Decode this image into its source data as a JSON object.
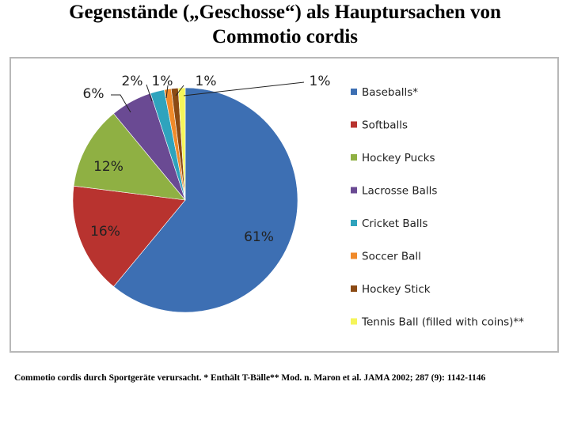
{
  "title_line1": "Gegenstände („Geschosse“) als Hauptursachen von",
  "title_line2": "Commotio cordis",
  "footnote": "Commotio cordis durch Sportgeräte verursacht. * Enthält T-Bälle** Mod. n. Maron et al. JAMA 2002; 287 (9): 1142-1146",
  "chart_data": {
    "type": "pie",
    "title": "",
    "legend_position": "right",
    "series": [
      {
        "name": "Baseballs*",
        "value": 61,
        "label": "61%",
        "color": "#3d6fb3"
      },
      {
        "name": "Softballs",
        "value": 16,
        "label": "16%",
        "color": "#b8332f"
      },
      {
        "name": "Hockey Pucks",
        "value": 12,
        "label": "12%",
        "color": "#8fb043"
      },
      {
        "name": "Lacrosse Balls",
        "value": 6,
        "label": "6%",
        "color": "#6a4a93"
      },
      {
        "name": "Cricket Balls",
        "value": 2,
        "label": "2%",
        "color": "#2fa3bd"
      },
      {
        "name": "Soccer Ball",
        "value": 1,
        "label": "1%",
        "color": "#f08a2a"
      },
      {
        "name": "Hockey Stick",
        "value": 1,
        "label": "1%",
        "color": "#8b4a14"
      },
      {
        "name": "Tennis Ball (filled with coins)**",
        "value": 1,
        "label": "1%",
        "color": "#f5f55a"
      }
    ]
  }
}
